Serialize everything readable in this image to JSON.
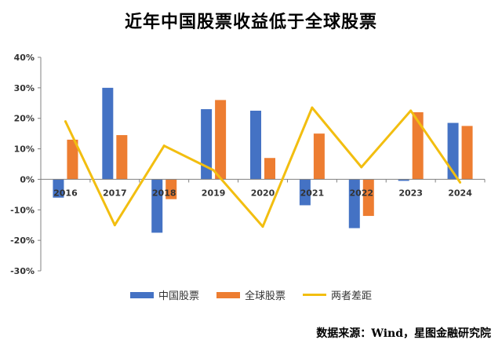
{
  "title": "近年中国股票收益低于全球股票",
  "source": "数据来源：Wind，星图金融研究院",
  "colors": {
    "china": "#4472C4",
    "global": "#ED7D31",
    "diff": "#F2BE10",
    "axis": "#808080"
  },
  "chart_data": {
    "type": "bar",
    "title": "近年中国股票收益低于全球股票",
    "categories": [
      "2016",
      "2017",
      "2018",
      "2019",
      "2020",
      "2021",
      "2022",
      "2023",
      "2024"
    ],
    "yticks": [
      "40%",
      "30%",
      "20%",
      "10%",
      "0%",
      "-10%",
      "-20%",
      "-30%"
    ],
    "ylim": [
      -30,
      40
    ],
    "unit": "%",
    "legend_position": "bottom",
    "series": [
      {
        "name": "中国股票",
        "type": "bar",
        "values": [
          -6,
          30,
          -17.5,
          23,
          22.5,
          -8.5,
          -16,
          -0.5,
          18.5
        ]
      },
      {
        "name": "全球股票",
        "type": "bar",
        "values": [
          13,
          14.5,
          -6.5,
          26,
          7,
          15,
          -12,
          22,
          17.5
        ]
      },
      {
        "name": "两者差距",
        "type": "line",
        "values": [
          19,
          -15,
          11,
          3,
          -15.5,
          23.5,
          4,
          22.5,
          -1
        ]
      }
    ]
  }
}
